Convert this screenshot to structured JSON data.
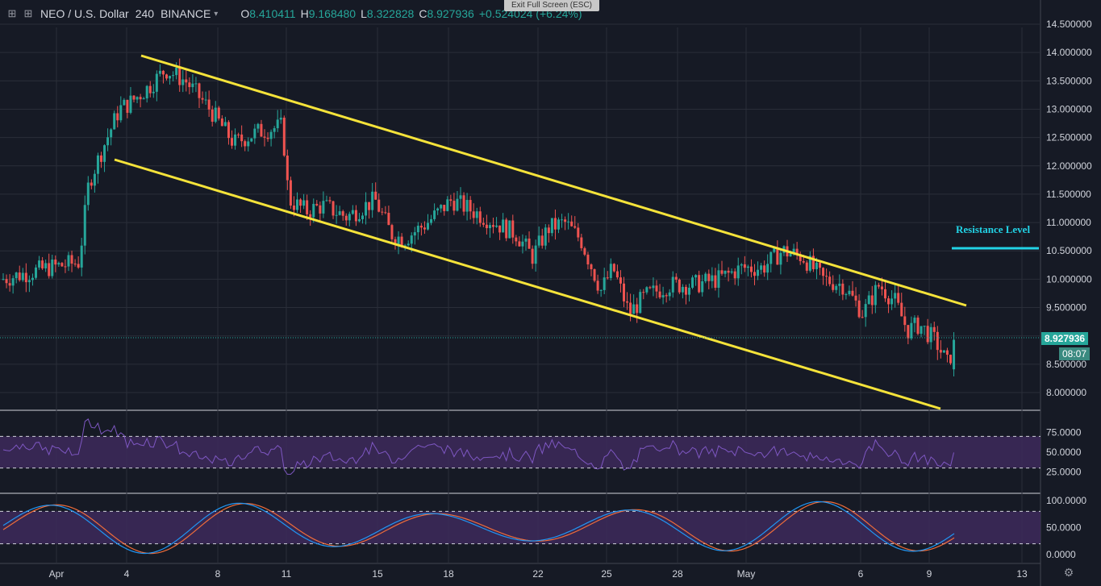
{
  "header": {
    "symbol": "NEO / U.S. Dollar",
    "interval": "240",
    "exchange": "BINANCE",
    "ohlc": {
      "open_label": "O",
      "open": "8.410411",
      "high_label": "H",
      "high": "9.168480",
      "low_label": "L",
      "low": "8.322828",
      "close_label": "C",
      "close": "8.927936",
      "change": "+0.524024 (+6.24%)"
    },
    "exit_fullscreen": "Exit Full Screen (ESC)"
  },
  "price_axis": {
    "ticks": [
      "14.500000",
      "14.000000",
      "13.500000",
      "13.000000",
      "12.500000",
      "12.000000",
      "11.500000",
      "11.000000",
      "10.500000",
      "10.000000",
      "9.500000",
      "8.500000",
      "8.000000"
    ],
    "last_price": "8.927936",
    "countdown": "08:07"
  },
  "rsi_axis": {
    "ticks": [
      "75.0000",
      "50.0000",
      "25.0000"
    ]
  },
  "stoch_axis": {
    "ticks": [
      "100.0000",
      "50.0000",
      "0.0000"
    ]
  },
  "time_axis": {
    "ticks": [
      "Apr",
      "4",
      "8",
      "11",
      "15",
      "18",
      "22",
      "25",
      "28",
      "May",
      "6",
      "9",
      "13"
    ]
  },
  "annotation": {
    "text": "Resistance Level"
  },
  "colors": {
    "background": "#161a25",
    "up": "#26a69a",
    "down": "#ef5350",
    "channel": "#f5e33a",
    "resistance": "#22d3e6",
    "rsi_band": "#3d2a5c",
    "rsi_line": "#7e57c2",
    "stoch_k": "#2196f3",
    "stoch_d": "#ef6c3a"
  },
  "icons": {
    "crosshair": "crosshair-icon",
    "add": "add-compare-icon",
    "settings": "gear-icon",
    "caret": "chevron-down-icon"
  }
}
